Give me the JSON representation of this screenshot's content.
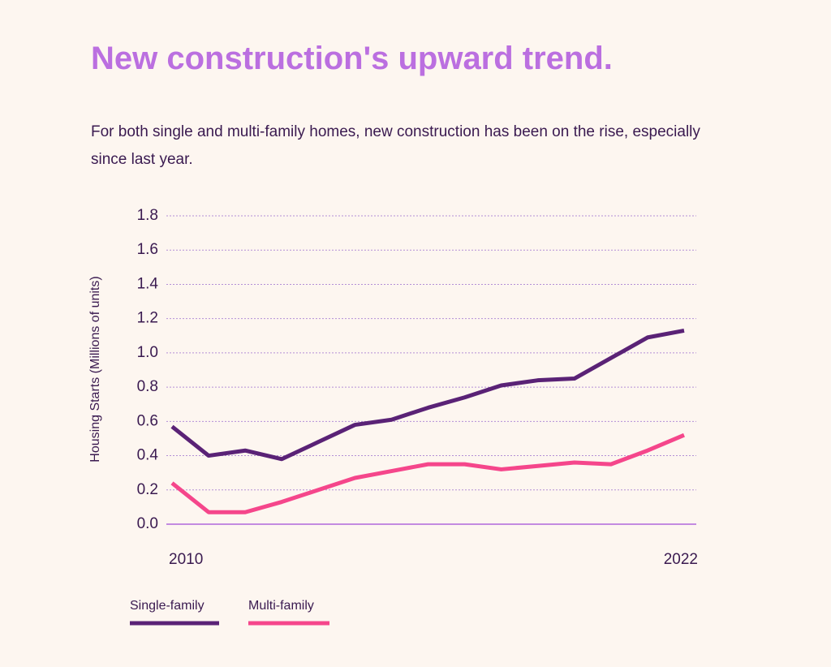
{
  "chart_data": {
    "type": "line",
    "title": "New construction's upward trend.",
    "subtitle": "For both single and multi-family homes, new construction has been on the rise, especially since last year.",
    "y_label": "Housing Starts (Millions of units)",
    "categories": [
      "2010",
      null,
      null,
      null,
      null,
      null,
      null,
      null,
      null,
      null,
      null,
      null,
      null,
      null,
      "2022"
    ],
    "series": [
      {
        "name": "Single-family",
        "color": "#5a2276",
        "values": [
          0.57,
          0.4,
          0.43,
          0.38,
          0.48,
          0.58,
          0.61,
          0.68,
          0.74,
          0.81,
          0.84,
          0.85,
          0.97,
          1.09,
          1.13
        ]
      },
      {
        "name": "Multi-family",
        "color": "#f5468b",
        "values": [
          0.24,
          0.07,
          0.07,
          0.13,
          0.2,
          0.27,
          0.31,
          0.35,
          0.35,
          0.32,
          0.34,
          0.36,
          0.35,
          0.43,
          0.52
        ]
      }
    ],
    "ylim": [
      0,
      1.8
    ],
    "yticks": [
      {
        "value": 0,
        "label": "0.0"
      },
      0.2,
      0.4,
      0.6,
      0.8,
      {
        "value": 1,
        "label": "1.0"
      },
      1.2,
      1.4,
      1.6,
      1.8
    ],
    "grid": true
  }
}
